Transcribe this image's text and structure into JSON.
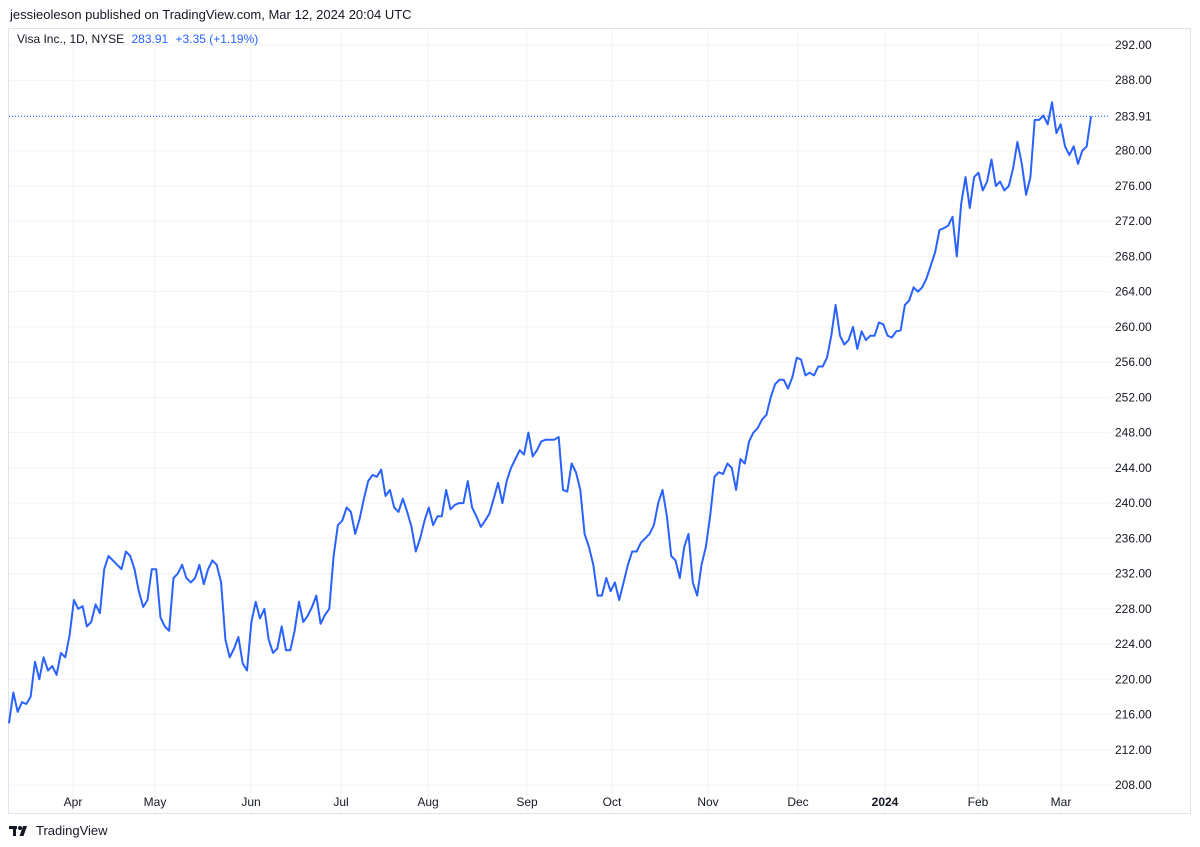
{
  "header": {
    "published": "jessieoleson published on TradingView.com, Mar 12, 2024 20:04 UTC"
  },
  "legend": {
    "symbol": "Visa Inc., 1D, NYSE",
    "price": "283.91",
    "change": "+3.35 (+1.19%)"
  },
  "footer": {
    "brand": "TradingView",
    "logo_icon": "tradingview-logo-icon"
  },
  "colors": {
    "line": "#2962ff",
    "grid": "#f0f3fa",
    "axis_text": "#131722"
  },
  "chart_data": {
    "type": "line",
    "title": "",
    "xlabel": "",
    "ylabel": "",
    "ylim": [
      206,
      294
    ],
    "y_ticks": [
      "208.00",
      "212.00",
      "216.00",
      "220.00",
      "224.00",
      "228.00",
      "232.00",
      "236.00",
      "240.00",
      "244.00",
      "248.00",
      "252.00",
      "256.00",
      "260.00",
      "264.00",
      "268.00",
      "272.00",
      "276.00",
      "280.00",
      "284.00",
      "288.00",
      "292.00"
    ],
    "x_tick_labels": [
      "Apr",
      "May",
      "Jun",
      "Jul",
      "Aug",
      "Sep",
      "Oct",
      "Nov",
      "Dec",
      "2024",
      "Feb",
      "Mar"
    ],
    "last_price_label": "283.91",
    "grid": true,
    "series": [
      {
        "values": [
          215.0,
          218.5,
          216.3,
          217.4,
          217.2,
          218.0,
          222.0,
          220.0,
          222.5,
          221.0,
          221.5,
          220.5,
          223.0,
          222.5,
          225.0,
          229.0,
          228.0,
          228.3,
          226.0,
          226.5,
          228.5,
          227.5,
          232.5,
          234.0,
          233.5,
          233.0,
          232.5,
          234.5,
          234.0,
          232.5,
          230.0,
          228.2,
          229.0,
          232.5,
          232.5,
          227.0,
          226.0,
          225.5,
          231.5,
          232.0,
          233.0,
          231.5,
          231.0,
          231.5,
          233.0,
          230.8,
          232.5,
          233.5,
          233.0,
          231.0,
          224.5,
          222.5,
          223.5,
          224.8,
          221.8,
          221.0,
          226.5,
          228.8,
          226.9,
          228.0,
          224.5,
          223.0,
          223.5,
          226.0,
          223.3,
          223.3,
          225.5,
          228.8,
          226.5,
          227.2,
          228.2,
          229.5,
          226.3,
          227.3,
          228.0,
          234.0,
          237.5,
          238.0,
          239.5,
          239.0,
          236.5,
          238.2,
          240.5,
          242.5,
          243.2,
          243.0,
          243.8,
          240.8,
          241.5,
          239.5,
          239.0,
          240.5,
          239.0,
          237.3,
          234.5,
          236.0,
          238.0,
          239.5,
          237.5,
          238.5,
          238.5,
          241.5,
          239.3,
          239.8,
          240.0,
          240.0,
          242.5,
          239.5,
          238.5,
          237.3,
          238.0,
          238.8,
          240.5,
          242.3,
          240.0,
          242.5,
          244.0,
          245.0,
          246.0,
          245.5,
          248.0,
          245.3,
          246.0,
          247.0,
          247.2,
          247.2,
          247.2,
          247.5,
          241.5,
          241.3,
          244.5,
          243.5,
          241.5,
          236.5,
          235.0,
          233.0,
          229.5,
          229.5,
          231.5,
          230.0,
          231.0,
          229.0,
          231.0,
          233.0,
          234.5,
          234.5,
          235.5,
          236.0,
          236.5,
          237.5,
          240.0,
          241.5,
          238.5,
          234.0,
          233.5,
          231.5,
          235.0,
          236.5,
          231.0,
          229.5,
          233.0,
          235.0,
          238.5,
          243.0,
          243.5,
          243.3,
          244.5,
          244.0,
          241.5,
          245.0,
          244.5,
          247.0,
          248.0,
          248.5,
          249.5,
          250.0,
          252.0,
          253.5,
          254.0,
          254.0,
          253.0,
          254.3,
          256.5,
          256.3,
          254.5,
          254.8,
          254.5,
          255.5,
          255.5,
          256.5,
          259.0,
          262.5,
          259.0,
          258.0,
          258.5,
          260.0,
          257.5,
          259.5,
          258.5,
          259.0,
          259.0,
          260.5,
          260.3,
          259.0,
          258.8,
          259.5,
          259.6,
          262.5,
          263.0,
          264.5,
          264.0,
          264.5,
          265.5,
          267.0,
          268.5,
          271.0,
          271.2,
          271.5,
          272.5,
          268.0,
          274.0,
          277.0,
          273.5,
          277.0,
          277.5,
          275.5,
          276.5,
          279.0,
          276.0,
          276.5,
          275.5,
          276.0,
          278.0,
          281.0,
          278.5,
          275.0,
          277.0,
          283.5,
          283.5,
          284.0,
          283.0,
          285.5,
          282.0,
          283.0,
          280.5,
          279.5,
          280.5,
          278.5,
          280.0,
          280.5,
          283.9
        ]
      }
    ]
  }
}
